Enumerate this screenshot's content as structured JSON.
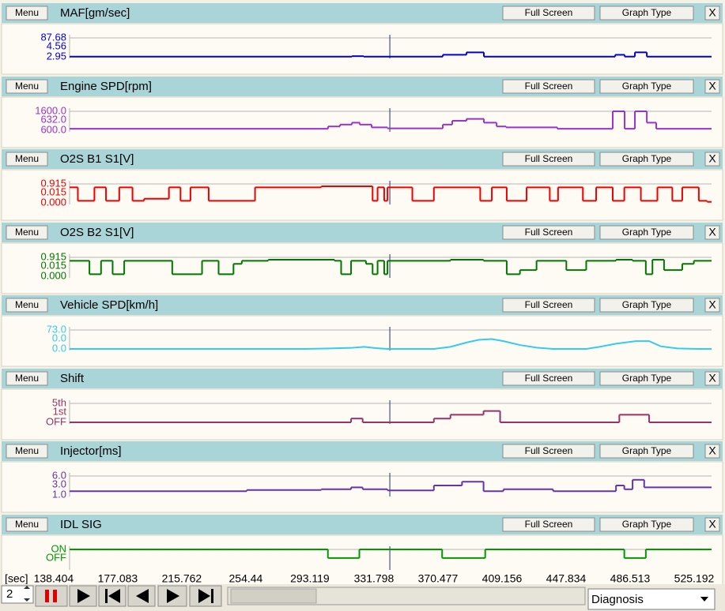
{
  "panels": [
    {
      "menu": "Menu",
      "title": "MAF[gm/sec]",
      "full_screen": "Full Screen",
      "graph_type": "Graph Type",
      "close": "X",
      "scale_labels": [
        "87.68",
        "4.56",
        "2.95"
      ],
      "ylim": [
        2.95,
        87.68
      ],
      "color": "#0000dd",
      "style": "step",
      "x": [
        148,
        318.5,
        325.6,
        373.4,
        387.7,
        398.2,
        477.5,
        483.2,
        489.4,
        496.6
      ],
      "values": [
        4,
        6,
        4,
        12,
        23,
        4,
        12,
        4,
        23,
        4
      ]
    },
    {
      "menu": "Menu",
      "title": "Engine SPD[rpm]",
      "full_screen": "Full Screen",
      "graph_type": "Graph Type",
      "close": "X",
      "scale_labels": [
        "1600.0",
        "632.0",
        "600.0"
      ],
      "ylim": [
        600,
        1600
      ],
      "color": "#9933cc",
      "style": "step",
      "x": [
        148,
        304.1,
        311.3,
        318.5,
        323.2,
        330.4,
        340,
        373.4,
        379.1,
        387.7,
        398.2,
        405.9,
        411.6,
        442.6,
        476,
        483.2,
        489.4,
        496.6,
        502.3
      ],
      "values": [
        680,
        800,
        900,
        1000,
        900,
        750,
        700,
        900,
        1100,
        1200,
        1000,
        800,
        750,
        680,
        1600,
        680,
        1600,
        1000,
        680
      ]
    },
    {
      "menu": "Menu",
      "title": "O2S B1 S1[V]",
      "full_screen": "Full Screen",
      "graph_type": "Graph Type",
      "close": "X",
      "scale_labels": [
        "0.915",
        "0.015",
        "0.000"
      ],
      "ylim": [
        0,
        0.915
      ],
      "color": "#ee0000",
      "style": "step",
      "x": [
        148,
        153,
        163,
        170,
        178,
        186,
        193,
        208,
        215,
        221,
        232,
        260,
        300,
        331,
        334,
        338,
        340,
        355,
        368,
        396,
        403,
        412,
        424,
        438,
        443,
        458,
        466,
        476,
        483,
        493,
        503,
        512,
        518,
        528,
        533
      ],
      "values": [
        0.75,
        0.1,
        0.75,
        0.1,
        0.75,
        0.1,
        0.2,
        0.75,
        0.1,
        0.75,
        0.1,
        0.75,
        0.8,
        0.1,
        0.75,
        0.1,
        0.75,
        0.1,
        0.75,
        0.1,
        0.75,
        0.1,
        0.75,
        0.1,
        0.75,
        0.1,
        0.75,
        0.1,
        0.75,
        0.1,
        0.75,
        0.1,
        0.75,
        0.1,
        0.05
      ]
    },
    {
      "menu": "Menu",
      "title": "O2S B2 S1[V]",
      "full_screen": "Full Screen",
      "graph_type": "Graph Type",
      "close": "X",
      "scale_labels": [
        "0.915",
        "0.015",
        "0.000"
      ],
      "ylim": [
        0,
        0.915
      ],
      "color": "#007700",
      "style": "step",
      "x": [
        148,
        160,
        167,
        174,
        181,
        210,
        228,
        238,
        247,
        252,
        268,
        308,
        312,
        318,
        327,
        331,
        334,
        338,
        340,
        378,
        398,
        412,
        420,
        430,
        448,
        460,
        478,
        488,
        496,
        500,
        507,
        518,
        525
      ],
      "values": [
        0.75,
        0.1,
        0.75,
        0.1,
        0.75,
        0.1,
        0.75,
        0.1,
        0.6,
        0.75,
        0.8,
        0.75,
        0.1,
        0.75,
        0.6,
        0.1,
        0.75,
        0.1,
        0.75,
        0.8,
        0.75,
        0.1,
        0.3,
        0.75,
        0.3,
        0.75,
        0.8,
        0.75,
        0.1,
        0.8,
        0.3,
        0.6,
        0.75
      ]
    },
    {
      "menu": "Menu",
      "title": "Vehicle SPD[km/h]",
      "full_screen": "Full Screen",
      "graph_type": "Graph Type",
      "close": "X",
      "scale_labels": [
        "73.0",
        "0.0",
        "0.0"
      ],
      "ylim": [
        0,
        73
      ],
      "color": "#33ccee",
      "style": "line",
      "x": [
        148,
        290,
        305,
        318,
        326,
        333,
        340,
        368,
        378,
        388,
        395,
        403,
        410,
        420,
        430,
        440,
        460,
        468,
        478,
        490,
        498,
        505,
        515,
        528,
        535.7
      ],
      "values": [
        0,
        0,
        2,
        4,
        8,
        3,
        0,
        0,
        8,
        25,
        35,
        38,
        30,
        15,
        5,
        0,
        0,
        8,
        20,
        30,
        30,
        10,
        2,
        0,
        0
      ]
    },
    {
      "menu": "Menu",
      "title": "Shift",
      "full_screen": "Full Screen",
      "graph_type": "Graph Type",
      "close": "X",
      "scale_labels": [
        "5th",
        "1st",
        "OFF"
      ],
      "ylim": [
        0,
        5
      ],
      "color": "#993366",
      "style": "step",
      "x": [
        148,
        318,
        325,
        368,
        378,
        398,
        408,
        480,
        498
      ],
      "values": [
        0,
        1,
        0,
        1,
        2,
        3,
        0,
        2,
        0
      ]
    },
    {
      "menu": "Menu",
      "title": "Injector[ms]",
      "full_screen": "Full Screen",
      "graph_type": "Graph Type",
      "close": "X",
      "scale_labels": [
        "6.0",
        "3.0",
        "1.0"
      ],
      "ylim": [
        1,
        6
      ],
      "color": "#6633aa",
      "style": "step",
      "x": [
        148,
        255,
        300,
        318,
        325,
        340,
        368,
        385,
        398,
        410,
        440,
        478,
        483,
        488,
        495
      ],
      "values": [
        2,
        2.3,
        2.5,
        3,
        2.5,
        2.2,
        3.5,
        4.5,
        2,
        2.5,
        2,
        3.5,
        2.5,
        5,
        3
      ]
    },
    {
      "menu": "Menu",
      "title": "IDL SIG",
      "full_screen": "Full Screen",
      "graph_type": "Graph Type",
      "close": "X",
      "scale_labels": [
        "ON",
        "OFF"
      ],
      "ylim": [
        -1.2,
        1
      ],
      "color": "#009900",
      "style": "step",
      "x": [
        148,
        304,
        323,
        373,
        399,
        483,
        496
      ],
      "values": [
        1,
        0,
        1,
        0,
        1,
        0,
        1
      ]
    }
  ],
  "time_axis": {
    "unit": "[sec]",
    "xlim": [
      148,
      535.7
    ],
    "ticks": [
      138.404,
      177.083,
      215.762,
      254.44,
      293.119,
      331.798,
      370.477,
      409.156,
      447.834,
      486.513,
      525.192
    ]
  },
  "cursor_time": 341.4,
  "toolbar": {
    "spin_value": 2,
    "mode": "Diagnosis"
  }
}
